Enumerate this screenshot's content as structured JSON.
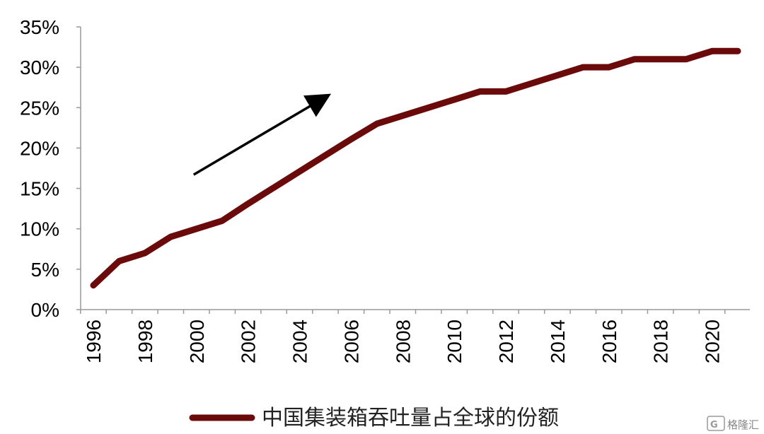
{
  "chart_data": {
    "type": "line",
    "title": "",
    "xlabel": "",
    "ylabel": "",
    "x": [
      1996,
      1997,
      1998,
      1999,
      2000,
      2001,
      2002,
      2003,
      2004,
      2005,
      2006,
      2007,
      2008,
      2009,
      2010,
      2011,
      2012,
      2013,
      2014,
      2015,
      2016,
      2017,
      2018,
      2019,
      2020,
      2021
    ],
    "series": [
      {
        "name": "中国集装箱吞吐量占全球的份额",
        "color": "#6b0a0a",
        "values": [
          3,
          6,
          7,
          9,
          10,
          11,
          13.1,
          15.1,
          17.1,
          19.1,
          21.1,
          23,
          24,
          25,
          26,
          27,
          27,
          28,
          29,
          30,
          30,
          31,
          31,
          31,
          32,
          32
        ]
      }
    ],
    "ylim": [
      0,
      35
    ],
    "yticks": [
      "0%",
      "5%",
      "10%",
      "15%",
      "20%",
      "25%",
      "30%",
      "35%"
    ],
    "ytick_values": [
      0,
      5,
      10,
      15,
      20,
      25,
      30,
      35
    ],
    "xticks": [
      "1996",
      "1998",
      "2000",
      "2002",
      "2004",
      "2006",
      "2008",
      "2010",
      "2012",
      "2014",
      "2016",
      "2018",
      "2020"
    ],
    "xtick_values": [
      1996,
      1998,
      2000,
      2002,
      2004,
      2006,
      2008,
      2010,
      2012,
      2014,
      2016,
      2018,
      2020
    ],
    "grid": false,
    "legend_position": "bottom",
    "annotations": [
      {
        "type": "arrow",
        "description": "upward trend arrow",
        "from": [
          2000,
          16.7
        ],
        "to": [
          2005,
          26.1
        ]
      }
    ],
    "axis_color": "#999999"
  },
  "watermark": {
    "icon": "gelonghui-logo-icon",
    "text": "格隆汇"
  }
}
